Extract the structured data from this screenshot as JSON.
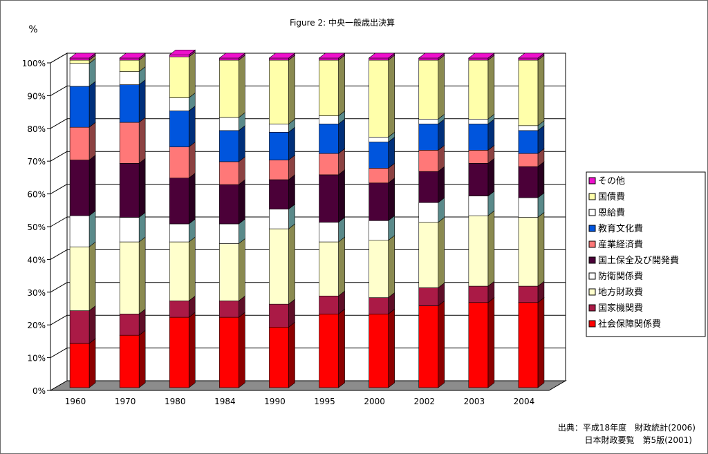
{
  "chart_data": {
    "type": "bar",
    "stacked": true,
    "three_d": true,
    "title": "Figure 2: 中央一般歳出決算",
    "ylabel": "%",
    "ylim": [
      0,
      100
    ],
    "yticks": [
      "0%",
      "10%",
      "20%",
      "30%",
      "40%",
      "50%",
      "60%",
      "70%",
      "80%",
      "90%",
      "100%"
    ],
    "grid": true,
    "legend_position": "right",
    "categories": [
      "1960",
      "1970",
      "1980",
      "1984",
      "1990",
      "1995",
      "2000",
      "2002",
      "2003",
      "2004"
    ],
    "series": [
      {
        "name": "社会保障関係費",
        "color": "#ff0000",
        "values": [
          13.5,
          16.0,
          21.5,
          21.5,
          18.5,
          22.5,
          22.5,
          25.0,
          26.0,
          26.0
        ]
      },
      {
        "name": "国家機関費",
        "color": "#aa1a46",
        "values": [
          10.0,
          6.5,
          5.0,
          5.0,
          7.0,
          5.5,
          5.0,
          5.5,
          5.0,
          5.0
        ]
      },
      {
        "name": "地方財政費",
        "color": "#ffffcc",
        "values": [
          19.5,
          22.0,
          18.0,
          17.5,
          23.0,
          16.5,
          17.5,
          20.0,
          21.5,
          21.0
        ]
      },
      {
        "name": "防衛関係費",
        "color": "#ffffff",
        "values": [
          9.5,
          7.5,
          5.5,
          6.0,
          6.0,
          6.0,
          6.0,
          6.0,
          6.0,
          6.0
        ]
      },
      {
        "name": "国土保全及び開発費",
        "color": "#4b0038",
        "values": [
          17.0,
          16.5,
          14.0,
          12.0,
          9.0,
          14.5,
          11.5,
          9.5,
          10.0,
          9.5
        ]
      },
      {
        "name": "産業経済費",
        "color": "#ff7878",
        "values": [
          10.0,
          12.5,
          9.5,
          7.0,
          6.0,
          6.5,
          4.5,
          6.5,
          4.0,
          4.0
        ]
      },
      {
        "name": "教育文化費",
        "color": "#0055dd",
        "values": [
          12.5,
          11.5,
          11.0,
          9.5,
          8.5,
          9.0,
          8.0,
          8.0,
          8.0,
          7.0
        ]
      },
      {
        "name": "恩給費",
        "color": "#ffffff",
        "values": [
          7.0,
          4.0,
          4.0,
          4.0,
          2.5,
          2.5,
          1.5,
          1.5,
          1.5,
          1.5
        ]
      },
      {
        "name": "国債費",
        "color": "#ffffaa",
        "values": [
          1.0,
          3.5,
          12.5,
          17.5,
          19.5,
          17.0,
          23.5,
          18.0,
          18.0,
          20.0
        ]
      },
      {
        "name": "その他",
        "color": "#ee11cc",
        "values": [
          0,
          0,
          0,
          0,
          0,
          0,
          0,
          0,
          0,
          0
        ]
      }
    ],
    "source": {
      "line1": "出典：平成18年度　財政統計(2006)",
      "line2": "日本財政要覧　第5版(2001)"
    }
  }
}
